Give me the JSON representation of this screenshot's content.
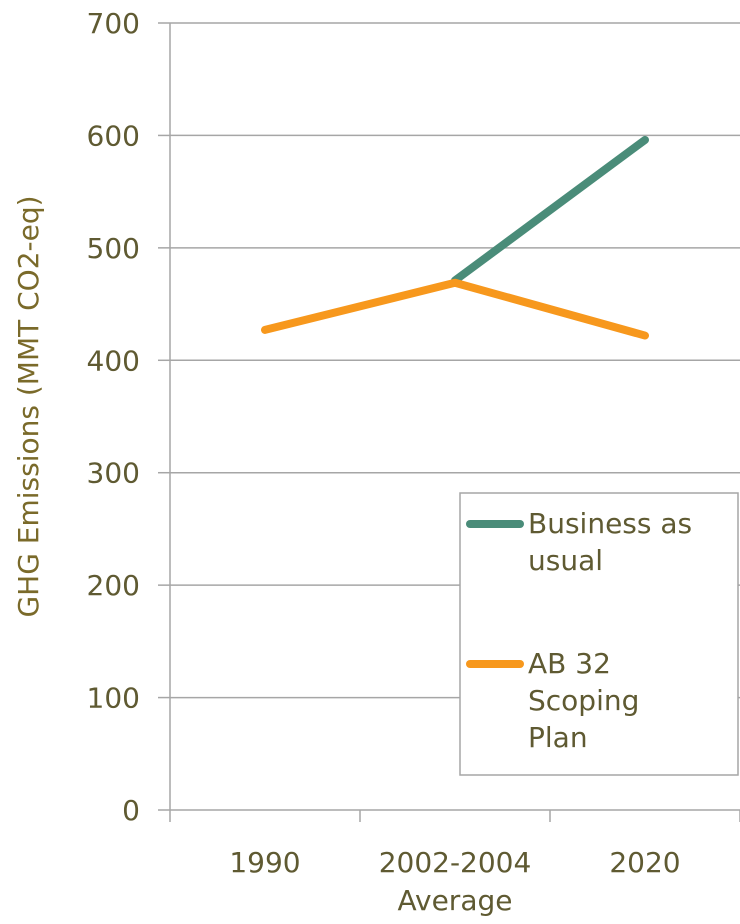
{
  "chart_data": {
    "type": "line",
    "categories": [
      "1990",
      "2002-2004 Average",
      "2020"
    ],
    "category_lines": [
      [
        "1990"
      ],
      [
        "2002-2004",
        "Average"
      ],
      [
        "2020"
      ]
    ],
    "ylabel": "GHG Emissions (MMT CO2-eq)",
    "xlabel": "",
    "ylim": [
      0,
      700
    ],
    "yticks": [
      0,
      100,
      200,
      300,
      400,
      500,
      600,
      700
    ],
    "grid": true,
    "legend_position": "bottom-right inside",
    "series": [
      {
        "name": "Business as usual",
        "name_lines": [
          "Business as",
          "usual"
        ],
        "color": "#4a8c79",
        "values": [
          null,
          471,
          596
        ]
      },
      {
        "name": "AB 32 Scoping Plan",
        "name_lines": [
          "AB 32",
          "Scoping",
          "Plan"
        ],
        "color": "#f7981d",
        "values": [
          427,
          469,
          422
        ]
      }
    ]
  }
}
